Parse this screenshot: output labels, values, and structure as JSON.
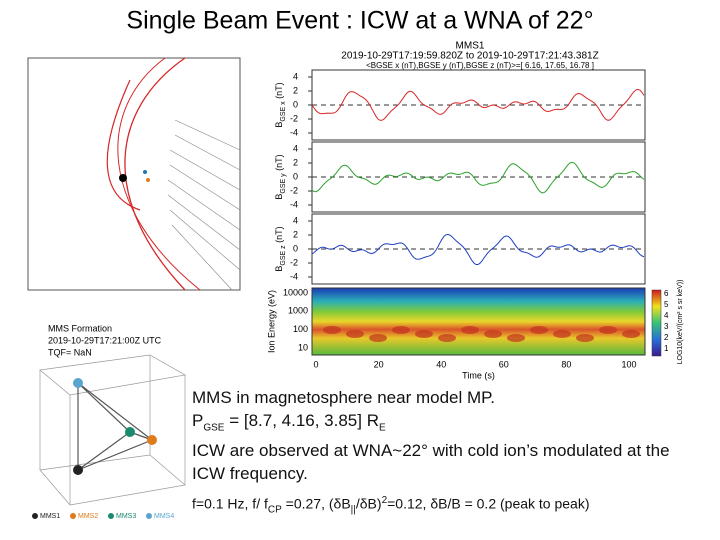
{
  "title": "Single Beam Event : ICW at a WNA of 22°",
  "field_plot": {
    "title": "MMS1",
    "interval": "2019-10-29T17:19:59.820Z to 2019-10-29T17:21:43.381Z",
    "mean": "<BGSE x (nT),BGSE y (nT),BGSE z (nT)>=[ 6.16, 17.65, 16.78 ]",
    "panels": [
      {
        "label": [
          {
            "text": "B"
          },
          {
            "text": "GSE x",
            "sub": true
          },
          {
            "text": " (nT)"
          }
        ],
        "color": "#d62728",
        "yticks": [
          4,
          2,
          0,
          -2,
          -4
        ]
      },
      {
        "label": [
          {
            "text": "B"
          },
          {
            "text": "GSE y",
            "sub": true
          },
          {
            "text": " (nT)"
          }
        ],
        "color": "#2ca02c",
        "yticks": [
          4,
          2,
          0,
          -2,
          -4
        ]
      },
      {
        "label": [
          {
            "text": "B"
          },
          {
            "text": "GSE z",
            "sub": true
          },
          {
            "text": " (nT)"
          }
        ],
        "color": "#1f3fbf",
        "yticks": [
          4,
          2,
          0,
          -2,
          -4
        ]
      }
    ],
    "spectrogram": {
      "label": "Ion Energy (eV)",
      "yticks": [
        10000,
        1000,
        100,
        10
      ],
      "colorbar_label": "LOG10(keV/(cm² s sr keV))",
      "colorbar_ticks": [
        6,
        5,
        4,
        3,
        2,
        1
      ]
    },
    "xlabel": "Time (s)",
    "xticks": [
      0,
      20,
      40,
      60,
      80,
      100
    ]
  },
  "formation": {
    "title": "MMS Formation",
    "time": "2019-10-29T17:21:00Z UTC",
    "tqf": "TQF= NaN",
    "legend": [
      {
        "name": "MMS1",
        "color": "#222222"
      },
      {
        "name": "MMS2",
        "color": "#e07b1a"
      },
      {
        "name": "MMS3",
        "color": "#1a8a6e"
      },
      {
        "name": "MMS4",
        "color": "#5aa5cf"
      }
    ]
  },
  "notes": [
    [
      {
        "text": "MMS in magnetosphere near model MP."
      }
    ],
    [
      {
        "text": "P"
      },
      {
        "text": "GSE",
        "sub": true
      },
      {
        "text": " = [8.7, 4.16, 3.85] R"
      },
      {
        "text": "E",
        "sub": true
      }
    ],
    [
      {
        "text": " ICW are observed at WNA~22° with cold ion’s modulated at the ICW frequency."
      }
    ],
    [
      {
        "text": " f=0.1 Hz, f/ f"
      },
      {
        "text": "CP",
        "sub": true
      },
      {
        "text": " =0.27, (δB"
      },
      {
        "text": "||",
        "sub": true
      },
      {
        "text": "/δB)"
      },
      {
        "text": "2",
        "sup": true
      },
      {
        "text": "=0.12, δB/B = 0.2 (peak to peak)"
      }
    ]
  ]
}
